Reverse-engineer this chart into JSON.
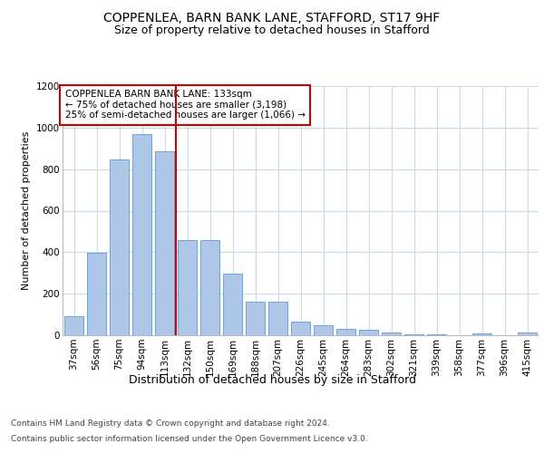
{
  "title": "COPPENLEA, BARN BANK LANE, STAFFORD, ST17 9HF",
  "subtitle": "Size of property relative to detached houses in Stafford",
  "xlabel": "Distribution of detached houses by size in Stafford",
  "ylabel": "Number of detached properties",
  "categories": [
    "37sqm",
    "56sqm",
    "75sqm",
    "94sqm",
    "113sqm",
    "132sqm",
    "150sqm",
    "169sqm",
    "188sqm",
    "207sqm",
    "226sqm",
    "245sqm",
    "264sqm",
    "283sqm",
    "302sqm",
    "321sqm",
    "339sqm",
    "358sqm",
    "377sqm",
    "396sqm",
    "415sqm"
  ],
  "values": [
    90,
    395,
    845,
    970,
    885,
    460,
    460,
    295,
    160,
    160,
    65,
    50,
    30,
    25,
    15,
    5,
    5,
    0,
    10,
    0,
    15
  ],
  "bar_color": "#aec6e8",
  "bar_edgecolor": "#5b9bd5",
  "vline_x": 4.5,
  "vline_color": "#cc0000",
  "annotation_text": "COPPENLEA BARN BANK LANE: 133sqm\n← 75% of detached houses are smaller (3,198)\n25% of semi-detached houses are larger (1,066) →",
  "annotation_box_edgecolor": "#cc0000",
  "annotation_fontsize": 7.5,
  "ylim": [
    0,
    1200
  ],
  "yticks": [
    0,
    200,
    400,
    600,
    800,
    1000,
    1200
  ],
  "title_fontsize": 10,
  "subtitle_fontsize": 9,
  "xlabel_fontsize": 9,
  "ylabel_fontsize": 8,
  "tick_fontsize": 7.5,
  "footer_line1": "Contains HM Land Registry data © Crown copyright and database right 2024.",
  "footer_line2": "Contains public sector information licensed under the Open Government Licence v3.0.",
  "footer_fontsize": 6.5,
  "bg_color": "#ffffff",
  "grid_color": "#ccd8ec"
}
